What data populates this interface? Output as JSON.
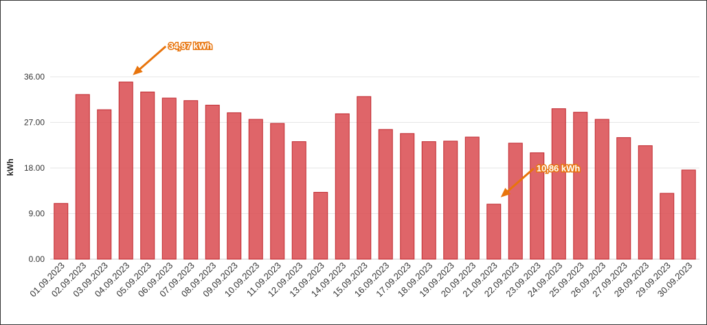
{
  "chart_data": {
    "type": "bar",
    "ylabel": "kWh",
    "xlabel": "",
    "ylim": [
      0,
      36
    ],
    "yticks": [
      "0.00",
      "9.00",
      "18.00",
      "27.00",
      "36.00"
    ],
    "grid": true,
    "bar_color": "#d94a4f",
    "annotation_color": "#e8740c",
    "categories": [
      "01.09.2023",
      "02.09.2023",
      "03.09.2023",
      "04.09.2023",
      "05.09.2023",
      "06.09.2023",
      "07.09.2023",
      "08.09.2023",
      "09.09.2023",
      "10.09.2023",
      "11.09.2023",
      "12.09.2023",
      "13.09.2023",
      "14.09.2023",
      "15.09.2023",
      "16.09.2023",
      "17.09.2023",
      "18.09.2023",
      "19.09.2023",
      "20.09.2023",
      "21.09.2023",
      "22.09.2023",
      "23.09.2023",
      "24.09.2023",
      "25.09.2023",
      "26.09.2023",
      "27.09.2023",
      "28.09.2023",
      "29.09.2023",
      "30.09.2023"
    ],
    "values": [
      11.0,
      32.5,
      29.5,
      34.97,
      33.0,
      31.8,
      31.3,
      30.4,
      28.9,
      27.6,
      26.8,
      23.2,
      13.2,
      28.7,
      32.1,
      25.6,
      24.8,
      23.2,
      23.3,
      24.1,
      10.86,
      22.9,
      21.0,
      29.7,
      29.0,
      27.6,
      24.0,
      22.4,
      13.0,
      17.6
    ],
    "annotations": [
      {
        "category_index": 3,
        "text": "34,97 kWh"
      },
      {
        "category_index": 20,
        "text": "10,86 kWh"
      }
    ]
  }
}
